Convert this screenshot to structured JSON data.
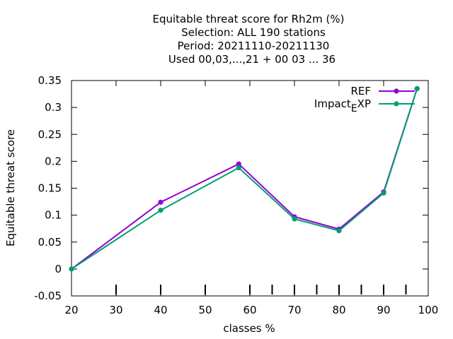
{
  "chart_data": {
    "type": "line",
    "title_lines": [
      "Equitable threat score  for Rh2m (%)",
      "Selection: ALL    190 stations",
      "Period: 20211110-20211130",
      "Used  00,03,...,21  + 00 03 ... 36"
    ],
    "xlabel": "classes %",
    "ylabel": "Equitable threat score",
    "xlim": [
      20,
      100
    ],
    "ylim": [
      -0.05,
      0.35
    ],
    "xticks": [
      20,
      30,
      40,
      50,
      60,
      70,
      80,
      90,
      100
    ],
    "yticks": [
      -0.05,
      0,
      0.05,
      0.1,
      0.15,
      0.2,
      0.25,
      0.3,
      0.35
    ],
    "xtick_labels": [
      "20",
      "30",
      "40",
      "50",
      "60",
      "70",
      "80",
      "90",
      "100"
    ],
    "ytick_labels": [
      "-0.05",
      "0",
      "0.05",
      "0.1",
      "0.15",
      "0.2",
      "0.25",
      "0.3",
      "0.35"
    ],
    "bottom_marks": [
      30,
      40,
      50,
      60,
      65,
      70,
      75,
      80,
      85,
      90,
      95
    ],
    "legend_position": "top-right",
    "series": [
      {
        "name": "REF",
        "color": "#9400d3",
        "x": [
          20,
          40,
          57.5,
          70,
          80,
          90,
          97.5
        ],
        "y": [
          0,
          0.124,
          0.195,
          0.097,
          0.074,
          0.143,
          0.335
        ]
      },
      {
        "name": "Impact_EXP",
        "legend_main": "Impact",
        "legend_sub": "E",
        "legend_tail": "XP",
        "color": "#009e73",
        "x": [
          20,
          40,
          57.5,
          70,
          80,
          90,
          97.5
        ],
        "y": [
          0,
          0.109,
          0.188,
          0.093,
          0.071,
          0.141,
          0.335
        ]
      }
    ]
  }
}
